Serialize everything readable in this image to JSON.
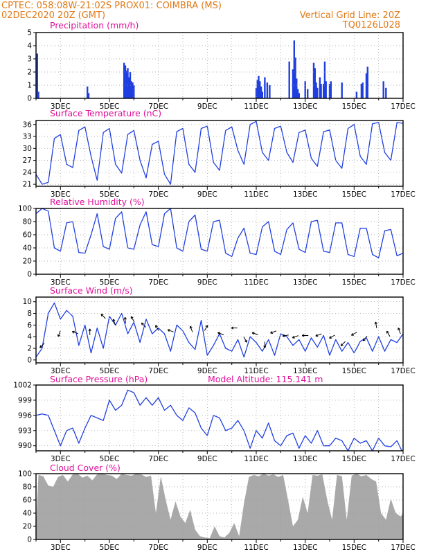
{
  "header": {
    "line1_left": "CPTEC:   058:08W-21:02S   PROX01: COIMBRA (MS)",
    "line2_left": "02DEC2020 20Z (GMT)",
    "line2_right": "Vertical Grid Line: 20Z",
    "line3_right": "TQ0126L028"
  },
  "colors": {
    "header": "#e07a18",
    "title": "#e0129a",
    "series": "#1f3fe0",
    "cloud": "#a9a9a9",
    "grid": "#9a9a9a"
  },
  "x_axis": {
    "start_day": 2,
    "end_day": 17,
    "tick_days": [
      3,
      5,
      7,
      9,
      11,
      13,
      15,
      17
    ],
    "tick_labels": [
      "3DEC",
      "5DEC",
      "7DEC",
      "9DEC",
      "11DEC",
      "13DEC",
      "15DEC",
      "17DEC"
    ]
  },
  "chart_data": [
    {
      "id": "precip",
      "type": "bar",
      "title": "Precipitation (mm/h)",
      "ylim": [
        0,
        5
      ],
      "yticks": [
        0,
        1,
        2,
        3,
        4,
        5
      ],
      "x": [
        2.05,
        2.1,
        4.1,
        4.15,
        5.6,
        5.65,
        5.7,
        5.75,
        5.8,
        5.85,
        5.9,
        5.95,
        6.0,
        11.0,
        11.05,
        11.1,
        11.15,
        11.2,
        11.25,
        11.35,
        11.45,
        11.55,
        12.35,
        12.5,
        12.55,
        12.6,
        12.65,
        12.7,
        12.75,
        13.0,
        13.1,
        13.35,
        13.4,
        13.45,
        13.5,
        13.6,
        13.65,
        13.75,
        13.8,
        13.85,
        14.0,
        14.05,
        14.5,
        15.1,
        15.3,
        15.35,
        15.5,
        15.55,
        16.2,
        16.3
      ],
      "values": [
        3.4,
        0.5,
        0.9,
        0.4,
        2.7,
        2.5,
        2.1,
        2.3,
        1.6,
        2.0,
        1.3,
        1.2,
        1.0,
        0.8,
        1.4,
        1.7,
        1.3,
        0.9,
        0.5,
        1.6,
        1.2,
        1.0,
        2.8,
        2.2,
        4.4,
        3.1,
        1.5,
        0.7,
        0.4,
        1.3,
        0.7,
        2.7,
        2.3,
        1.2,
        0.8,
        1.6,
        1.1,
        1.1,
        2.8,
        1.3,
        1.1,
        1.3,
        1.2,
        0.5,
        1.1,
        1.2,
        1.9,
        2.4,
        1.3,
        0.8
      ]
    },
    {
      "id": "temp",
      "type": "line",
      "title": "Surface Temperature (nC)",
      "ylim": [
        20.5,
        37
      ],
      "yticks": [
        21,
        24,
        27,
        30,
        33,
        36
      ],
      "x": [
        2.0,
        2.25,
        2.5,
        2.75,
        3.0,
        3.25,
        3.5,
        3.75,
        4.0,
        4.25,
        4.5,
        4.75,
        5.0,
        5.25,
        5.5,
        5.75,
        6.0,
        6.25,
        6.5,
        6.75,
        7.0,
        7.25,
        7.5,
        7.75,
        8.0,
        8.25,
        8.5,
        8.75,
        9.0,
        9.25,
        9.5,
        9.75,
        10.0,
        10.25,
        10.5,
        10.75,
        11.0,
        11.25,
        11.5,
        11.75,
        12.0,
        12.25,
        12.5,
        12.75,
        13.0,
        13.25,
        13.5,
        13.75,
        14.0,
        14.25,
        14.5,
        14.75,
        15.0,
        15.25,
        15.5,
        15.75,
        16.0,
        16.25,
        16.5,
        16.75,
        17.0
      ],
      "values": [
        23.5,
        21.0,
        21.5,
        32.5,
        33.5,
        26.0,
        25.2,
        34.5,
        35.4,
        28.0,
        22.0,
        34.0,
        35.0,
        26.0,
        23.8,
        33.5,
        34.5,
        27.0,
        22.6,
        31.0,
        31.8,
        23.5,
        21.0,
        34.2,
        35.0,
        26.0,
        24.0,
        35.0,
        35.6,
        26.5,
        24.5,
        34.5,
        35.4,
        29.5,
        26.0,
        36.0,
        36.8,
        29.0,
        27.0,
        35.0,
        35.6,
        29.0,
        26.5,
        34.0,
        34.6,
        27.5,
        25.5,
        34.2,
        34.6,
        27.0,
        25.0,
        35.0,
        36.0,
        28.0,
        26.0,
        36.2,
        36.5,
        29.0,
        27.0,
        36.5,
        36.3
      ]
    },
    {
      "id": "rh",
      "type": "line",
      "title": "Relative Humidity (%)",
      "ylim": [
        0,
        100
      ],
      "yticks": [
        0,
        20,
        40,
        60,
        80,
        100
      ],
      "x": [
        2.0,
        2.25,
        2.5,
        2.75,
        3.0,
        3.25,
        3.5,
        3.75,
        4.0,
        4.25,
        4.5,
        4.75,
        5.0,
        5.25,
        5.5,
        5.75,
        6.0,
        6.25,
        6.5,
        6.75,
        7.0,
        7.25,
        7.5,
        7.75,
        8.0,
        8.25,
        8.5,
        8.75,
        9.0,
        9.25,
        9.5,
        9.75,
        10.0,
        10.25,
        10.5,
        10.75,
        11.0,
        11.25,
        11.5,
        11.75,
        12.0,
        12.25,
        12.5,
        12.75,
        13.0,
        13.25,
        13.5,
        13.75,
        14.0,
        14.25,
        14.5,
        14.75,
        15.0,
        15.25,
        15.5,
        15.75,
        16.0,
        16.25,
        16.5,
        16.75,
        17.0
      ],
      "values": [
        92,
        100,
        96,
        40,
        35,
        78,
        80,
        33,
        32,
        60,
        92,
        42,
        38,
        85,
        95,
        40,
        38,
        75,
        95,
        45,
        42,
        92,
        100,
        40,
        35,
        80,
        90,
        38,
        35,
        80,
        82,
        32,
        27,
        55,
        70,
        32,
        30,
        72,
        80,
        35,
        30,
        68,
        78,
        38,
        33,
        80,
        82,
        35,
        33,
        78,
        78,
        30,
        27,
        70,
        70,
        30,
        25,
        66,
        68,
        28,
        32
      ]
    },
    {
      "id": "wind",
      "type": "line",
      "title": "Surface Wind (m/s)",
      "ylim": [
        -0.5,
        10.8
      ],
      "yticks": [
        0,
        2,
        4,
        6,
        8,
        10
      ],
      "x": [
        2.0,
        2.25,
        2.5,
        2.75,
        3.0,
        3.25,
        3.5,
        3.75,
        4.0,
        4.25,
        4.5,
        4.75,
        5.0,
        5.25,
        5.5,
        5.75,
        6.0,
        6.25,
        6.5,
        6.75,
        7.0,
        7.25,
        7.5,
        7.75,
        8.0,
        8.25,
        8.5,
        8.75,
        9.0,
        9.25,
        9.5,
        9.75,
        10.0,
        10.25,
        10.5,
        10.75,
        11.0,
        11.25,
        11.5,
        11.75,
        12.0,
        12.25,
        12.5,
        12.75,
        13.0,
        13.25,
        13.5,
        13.75,
        14.0,
        14.25,
        14.5,
        14.75,
        15.0,
        15.25,
        15.5,
        15.75,
        16.0,
        16.25,
        16.5,
        16.75,
        17.0
      ],
      "values": [
        0.5,
        2.0,
        8.0,
        9.8,
        7.0,
        8.5,
        7.5,
        2.5,
        6.0,
        1.2,
        5.5,
        2.0,
        7.5,
        6.0,
        8.0,
        4.5,
        6.5,
        3.0,
        7.0,
        4.5,
        5.5,
        4.5,
        1.5,
        6.0,
        5.0,
        3.0,
        1.8,
        6.8,
        0.8,
        2.5,
        4.5,
        2.0,
        1.5,
        3.5,
        0.5,
        4.0,
        3.0,
        1.5,
        3.5,
        0.8,
        4.5,
        4.0,
        2.5,
        3.5,
        1.5,
        3.8,
        2.2,
        4.2,
        0.8,
        3.5,
        1.5,
        3.0,
        1.2,
        3.2,
        3.8,
        1.5,
        4.0,
        1.5,
        3.5,
        3.0,
        4.5
      ],
      "arrows": [
        {
          "day": 2.25,
          "speed": 2.5,
          "dir_deg": 225
        },
        {
          "day": 2.95,
          "speed": 4.5,
          "dir_deg": 250
        },
        {
          "day": 3.6,
          "speed": 4.7,
          "dir_deg": 160
        },
        {
          "day": 4.2,
          "speed": 4.8,
          "dir_deg": 90
        },
        {
          "day": 4.75,
          "speed": 7.5,
          "dir_deg": 135
        },
        {
          "day": 5.2,
          "speed": 6.5,
          "dir_deg": 110
        },
        {
          "day": 5.65,
          "speed": 6.8,
          "dir_deg": 95
        },
        {
          "day": 5.95,
          "speed": 7.0,
          "dir_deg": 120
        },
        {
          "day": 6.4,
          "speed": 6.0,
          "dir_deg": 135
        },
        {
          "day": 6.95,
          "speed": 5.5,
          "dir_deg": 120
        },
        {
          "day": 7.5,
          "speed": 5.0,
          "dir_deg": 160
        },
        {
          "day": 8.35,
          "speed": 5.3,
          "dir_deg": 110
        },
        {
          "day": 8.95,
          "speed": 5.5,
          "dir_deg": 60
        },
        {
          "day": 9.55,
          "speed": 4.5,
          "dir_deg": 160
        },
        {
          "day": 10.1,
          "speed": 5.5,
          "dir_deg": 180
        },
        {
          "day": 10.55,
          "speed": 3.5,
          "dir_deg": 300
        },
        {
          "day": 10.95,
          "speed": 4.5,
          "dir_deg": 160
        },
        {
          "day": 11.35,
          "speed": 2.6,
          "dir_deg": 270
        },
        {
          "day": 11.7,
          "speed": 4.8,
          "dir_deg": 200
        },
        {
          "day": 12.2,
          "speed": 4.2,
          "dir_deg": 190
        },
        {
          "day": 12.6,
          "speed": 4.0,
          "dir_deg": 200
        },
        {
          "day": 13.0,
          "speed": 4.2,
          "dir_deg": 180
        },
        {
          "day": 13.55,
          "speed": 4.3,
          "dir_deg": 200
        },
        {
          "day": 14.1,
          "speed": 4.0,
          "dir_deg": 210
        },
        {
          "day": 14.55,
          "speed": 2.8,
          "dir_deg": 225
        },
        {
          "day": 15.0,
          "speed": 4.5,
          "dir_deg": 210
        },
        {
          "day": 15.45,
          "speed": 3.7,
          "dir_deg": 230
        },
        {
          "day": 15.9,
          "speed": 6.0,
          "dir_deg": 100
        },
        {
          "day": 16.4,
          "speed": 4.5,
          "dir_deg": 120
        },
        {
          "day": 16.85,
          "speed": 5.0,
          "dir_deg": 110
        }
      ]
    },
    {
      "id": "pres",
      "type": "line",
      "title": "Surface Pressure (hPa)",
      "annotation": "Model Altitude: 115.141  m",
      "ylim": [
        989,
        1002
      ],
      "yticks": [
        990,
        993,
        996,
        999,
        1002
      ],
      "x": [
        2.0,
        2.25,
        2.5,
        2.75,
        3.0,
        3.25,
        3.5,
        3.75,
        4.0,
        4.25,
        4.5,
        4.75,
        5.0,
        5.25,
        5.5,
        5.75,
        6.0,
        6.25,
        6.5,
        6.75,
        7.0,
        7.25,
        7.5,
        7.75,
        8.0,
        8.25,
        8.5,
        8.75,
        9.0,
        9.25,
        9.5,
        9.75,
        10.0,
        10.25,
        10.5,
        10.75,
        11.0,
        11.25,
        11.5,
        11.75,
        12.0,
        12.25,
        12.5,
        12.75,
        13.0,
        13.25,
        13.5,
        13.75,
        14.0,
        14.25,
        14.5,
        14.75,
        15.0,
        15.25,
        15.5,
        15.75,
        16.0,
        16.25,
        16.5,
        16.75,
        17.0
      ],
      "values": [
        996.0,
        996.3,
        996.0,
        993.0,
        990.0,
        993.0,
        993.5,
        990.5,
        993.5,
        996.0,
        995.5,
        995.0,
        999.0,
        997.0,
        998.0,
        1001.0,
        1000.5,
        998.0,
        999.5,
        998.0,
        999.5,
        997.0,
        998.0,
        996.0,
        995.0,
        997.5,
        996.5,
        993.5,
        992.0,
        996.0,
        995.5,
        993.0,
        993.5,
        995.0,
        993.0,
        989.5,
        993.0,
        991.5,
        994.5,
        991.0,
        990.0,
        992.0,
        992.5,
        989.5,
        992.0,
        990.5,
        993.0,
        990.0,
        990.0,
        991.5,
        991.0,
        989.0,
        991.5,
        990.5,
        991.0,
        989.0,
        991.5,
        990.0,
        989.8,
        991.0,
        988.5
      ]
    },
    {
      "id": "cloud",
      "type": "area",
      "title": "Cloud Cover (%)",
      "ylim": [
        0,
        100
      ],
      "yticks": [
        0,
        20,
        40,
        60,
        80,
        100
      ],
      "x": [
        2.0,
        2.1,
        2.3,
        2.5,
        2.7,
        2.9,
        3.1,
        3.3,
        3.5,
        3.7,
        3.9,
        4.1,
        4.3,
        4.5,
        4.7,
        4.9,
        5.1,
        5.3,
        5.5,
        5.7,
        5.9,
        6.1,
        6.3,
        6.5,
        6.7,
        6.9,
        7.1,
        7.3,
        7.5,
        7.7,
        7.9,
        8.1,
        8.3,
        8.5,
        8.7,
        8.9,
        9.1,
        9.3,
        9.5,
        9.7,
        9.9,
        10.1,
        10.3,
        10.5,
        10.7,
        10.9,
        11.1,
        11.3,
        11.5,
        11.7,
        11.9,
        12.1,
        12.3,
        12.5,
        12.7,
        12.9,
        13.1,
        13.3,
        13.5,
        13.7,
        13.9,
        14.1,
        14.3,
        14.5,
        14.7,
        14.9,
        15.1,
        15.3,
        15.5,
        15.7,
        15.9,
        16.1,
        16.3,
        16.5,
        16.7,
        16.9,
        17.0
      ],
      "values": [
        20,
        98,
        96,
        82,
        80,
        95,
        98,
        88,
        99,
        100,
        94,
        97,
        90,
        99,
        100,
        98,
        97,
        92,
        100,
        98,
        97,
        100,
        99,
        95,
        97,
        40,
        96,
        60,
        30,
        58,
        35,
        25,
        45,
        15,
        5,
        3,
        2,
        20,
        5,
        3,
        10,
        25,
        5,
        55,
        95,
        98,
        96,
        100,
        97,
        99,
        95,
        98,
        60,
        20,
        30,
        65,
        40,
        98,
        97,
        99,
        60,
        30,
        98,
        96,
        30,
        97,
        100,
        96,
        98,
        92,
        88,
        40,
        30,
        62,
        40,
        35,
        40
      ]
    }
  ]
}
